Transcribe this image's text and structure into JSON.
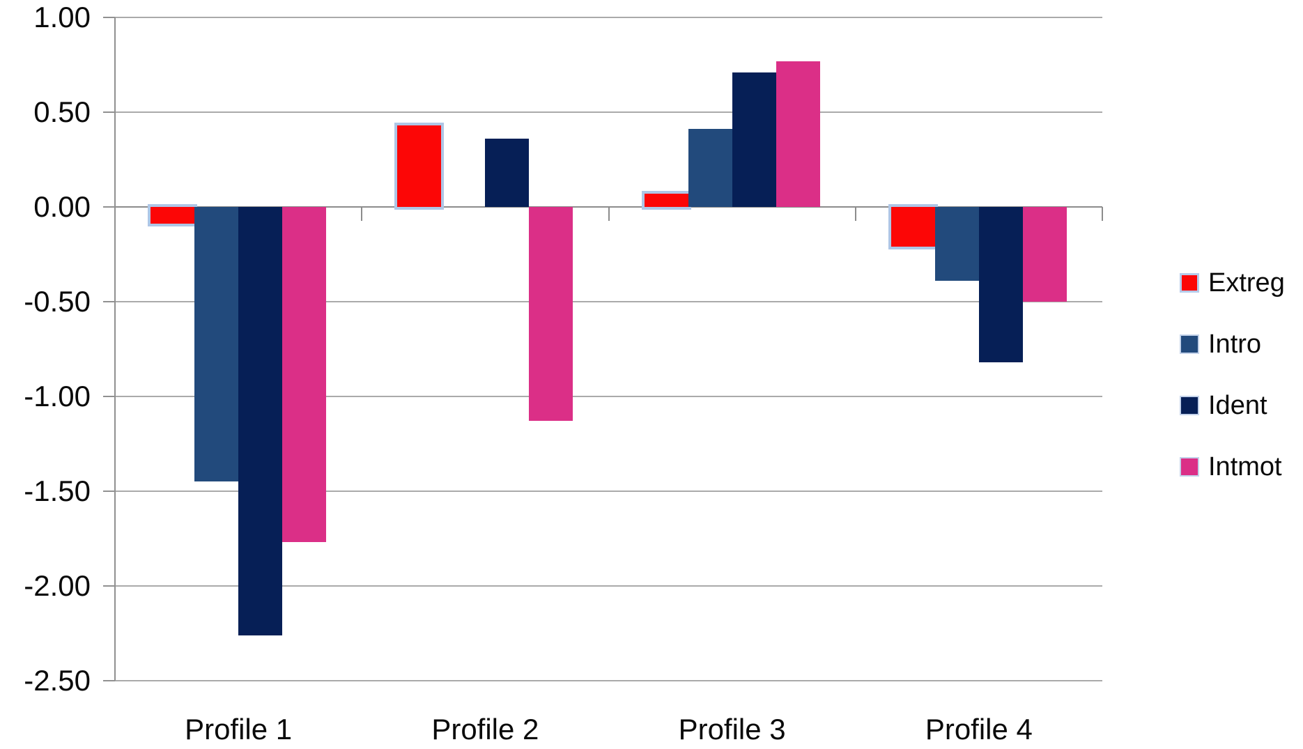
{
  "chart_data": {
    "type": "bar",
    "title": "",
    "xlabel": "",
    "ylabel": "",
    "categories": [
      "Profile 1",
      "Profile 2",
      "Profile 3",
      "Profile 4"
    ],
    "series": [
      {
        "name": "Extreg",
        "color": "#fc0606",
        "highlight": true,
        "values": [
          -0.09,
          0.43,
          0.07,
          -0.21
        ]
      },
      {
        "name": "Intro",
        "color": "#224a7c",
        "highlight": false,
        "values": [
          -1.45,
          0.0,
          0.41,
          -0.39
        ]
      },
      {
        "name": "Ident",
        "color": "#061f56",
        "highlight": false,
        "values": [
          -2.26,
          0.36,
          0.71,
          -0.82
        ]
      },
      {
        "name": "Intmot",
        "color": "#db2f87",
        "highlight": false,
        "values": [
          -1.77,
          -1.13,
          0.77,
          -0.5
        ]
      }
    ],
    "ylim": [
      -2.5,
      1.0
    ],
    "ytick_step": 0.5,
    "ytick_labels": [
      "1.00",
      "0.50",
      "0.00",
      "-0.50",
      "-1.00",
      "-1.50",
      "-2.00",
      "-2.50"
    ],
    "grid": true,
    "legend_position": "right",
    "colors": {
      "highlight_border": "#aec6e6",
      "gridline": "#aaaaaa",
      "zero_line": "#8c8c8c",
      "axis": "#909090",
      "text": "#0a0a0a",
      "background": "#ffffff"
    }
  }
}
